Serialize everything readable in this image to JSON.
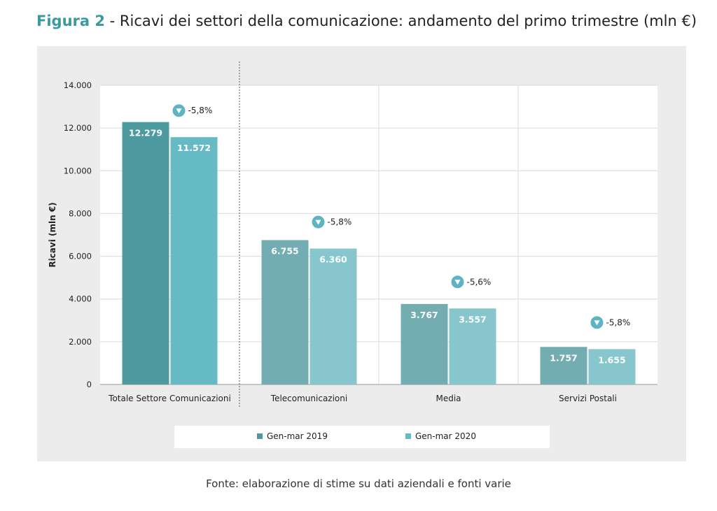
{
  "title": {
    "prefix": "Figura 2",
    "text": "- Ricavi dei settori della comunicazione: andamento del primo trimestre (mln €)"
  },
  "source": "Fonte: elaborazione di stime su dati aziendali e fonti varie",
  "colors": {
    "series_2019": "#4d9aa0",
    "series_2019_light": "#73acb1",
    "series_2020": "#66bac4",
    "series_2020_light": "#87c6cd",
    "badge": "#5fb4c4"
  },
  "chart_data": {
    "type": "bar",
    "title": "Ricavi dei settori della comunicazione: andamento del primo trimestre (mln €)",
    "ylabel": "Ricavi (mln €)",
    "xlabel": "",
    "ylim": [
      0,
      14000
    ],
    "yticks": [
      "0",
      "2.000",
      "4.000",
      "6.000",
      "8.000",
      "10.000",
      "12.000",
      "14.000"
    ],
    "grid": true,
    "legend_position": "bottom",
    "categories": [
      "Totale Settore Comunicazioni",
      "Telecomunicazioni",
      "Media",
      "Servizi Postali"
    ],
    "series": [
      {
        "name": "Gen-mar 2019",
        "values": [
          12279,
          6755,
          3767,
          1757
        ],
        "labels": [
          "12.279",
          "6.755",
          "3.767",
          "1.757"
        ]
      },
      {
        "name": "Gen-mar 2020",
        "values": [
          11572,
          6360,
          3557,
          1655
        ],
        "labels": [
          "11.572",
          "6.360",
          "3.557",
          "1.655"
        ]
      }
    ],
    "annotations": [
      "-5,8%",
      "-5,8%",
      "-5,6%",
      "-5,8%"
    ]
  }
}
